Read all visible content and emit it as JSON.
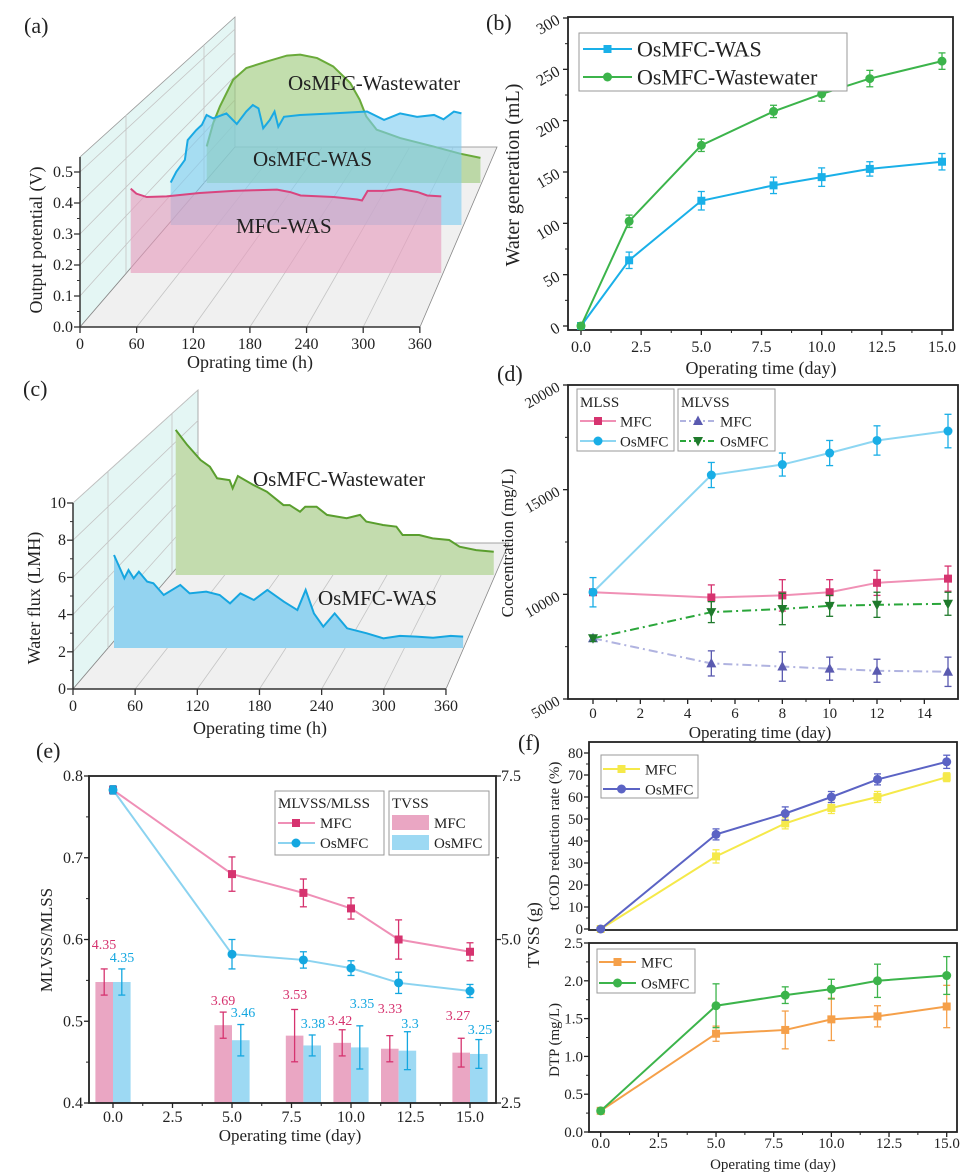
{
  "chart_data": [
    {
      "panel_label": "(a)",
      "type": "area",
      "projection": "3d-waterfall",
      "xlabel": "Oprating time (h)",
      "ylabel": "Output potential (V)",
      "xlim": [
        0,
        360
      ],
      "ylim": [
        0,
        0.5
      ],
      "grid": true,
      "xticks": [
        "0",
        "60",
        "120",
        "180",
        "240",
        "300",
        "360"
      ],
      "yticks": [
        "0.0",
        "0.1",
        "0.2",
        "0.3",
        "0.4",
        "0.5"
      ],
      "series": [
        {
          "name": "MFC-WAS",
          "line_color": "#d9457f",
          "fill_color": "#e79bbd",
          "points": [
            [
              0,
              0.272
            ],
            [
              6,
              0.256
            ],
            [
              17,
              0.245
            ],
            [
              38,
              0.247
            ],
            [
              73,
              0.258
            ],
            [
              109,
              0.265
            ],
            [
              130,
              0.267
            ],
            [
              155,
              0.269
            ],
            [
              169,
              0.261
            ],
            [
              180,
              0.25
            ],
            [
              215,
              0.245
            ],
            [
              240,
              0.237
            ],
            [
              245,
              0.234
            ],
            [
              251,
              0.265
            ],
            [
              268,
              0.265
            ],
            [
              286,
              0.271
            ],
            [
              304,
              0.261
            ],
            [
              314,
              0.25
            ],
            [
              329,
              0.247
            ]
          ]
        },
        {
          "name": "OsMFC-WAS",
          "line_color": "#1aa9e3",
          "fill_color": "#7fcdf0",
          "points": [
            [
              0,
              0.137
            ],
            [
              6,
              0.172
            ],
            [
              15,
              0.21
            ],
            [
              18,
              0.274
            ],
            [
              27,
              0.306
            ],
            [
              33,
              0.323
            ],
            [
              38,
              0.355
            ],
            [
              45,
              0.344
            ],
            [
              59,
              0.36
            ],
            [
              70,
              0.326
            ],
            [
              80,
              0.366
            ],
            [
              87,
              0.387
            ],
            [
              93,
              0.376
            ],
            [
              98,
              0.312
            ],
            [
              105,
              0.339
            ],
            [
              110,
              0.366
            ],
            [
              114,
              0.317
            ],
            [
              120,
              0.349
            ],
            [
              137,
              0.355
            ],
            [
              172,
              0.36
            ],
            [
              208,
              0.366
            ],
            [
              226,
              0.339
            ],
            [
              243,
              0.36
            ],
            [
              261,
              0.349
            ],
            [
              279,
              0.355
            ],
            [
              289,
              0.341
            ],
            [
              300,
              0.366
            ],
            [
              308,
              0.36
            ]
          ]
        },
        {
          "name": "OsMFC-Wastewater",
          "line_color": "#6aaa3a",
          "fill_color": "#9cc97a",
          "points": [
            [
              0,
              0.118
            ],
            [
              7,
              0.194
            ],
            [
              14,
              0.247
            ],
            [
              28,
              0.333
            ],
            [
              42,
              0.371
            ],
            [
              64,
              0.392
            ],
            [
              85,
              0.411
            ],
            [
              99,
              0.414
            ],
            [
              117,
              0.403
            ],
            [
              134,
              0.376
            ],
            [
              152,
              0.323
            ],
            [
              162,
              0.269
            ],
            [
              169,
              0.215
            ],
            [
              180,
              0.172
            ],
            [
              205,
              0.145
            ],
            [
              240,
              0.118
            ],
            [
              268,
              0.095
            ],
            [
              290,
              0.081
            ]
          ]
        }
      ]
    },
    {
      "panel_label": "(b)",
      "type": "line",
      "xlabel": "Operating time (day)",
      "ylabel": "Water generation (mL)",
      "xlim": [
        0,
        15
      ],
      "ylim": [
        0,
        300
      ],
      "legend": "top-left",
      "xticks": [
        "0.0",
        "2.5",
        "5.0",
        "7.5",
        "10.0",
        "12.5",
        "15.0"
      ],
      "yticks": [
        "0",
        "50",
        "100",
        "150",
        "200",
        "250",
        "300"
      ],
      "x": [
        0,
        2,
        5,
        8,
        10,
        12,
        15
      ],
      "series": [
        {
          "name": "OsMFC-WAS",
          "marker": "square",
          "color": "#1ab0e8",
          "values": [
            0,
            64,
            122,
            137,
            145,
            153,
            160
          ],
          "errors": [
            3,
            8,
            9,
            8,
            9,
            7,
            8
          ]
        },
        {
          "name": "OsMFC-Wastewater",
          "marker": "circle",
          "color": "#3cb44b",
          "values": [
            0,
            102,
            176,
            209,
            226,
            241,
            258
          ],
          "errors": [
            3,
            6,
            6,
            6,
            7,
            8,
            8
          ]
        }
      ]
    },
    {
      "panel_label": "(c)",
      "type": "area",
      "projection": "3d-waterfall",
      "xlabel": "Operating time (h)",
      "ylabel": "Water flux (LMH)",
      "xlim": [
        0,
        360
      ],
      "ylim": [
        0,
        10
      ],
      "grid": true,
      "xticks": [
        "0",
        "60",
        "120",
        "180",
        "240",
        "300",
        "360"
      ],
      "yticks": [
        "0",
        "2",
        "4",
        "6",
        "8",
        "10"
      ],
      "series": [
        {
          "name": "OsMFC-WAS",
          "line_color": "#16a6e0",
          "fill_color": "#93d3f0",
          "points": [
            [
              0,
              5.0
            ],
            [
              10,
              3.75
            ],
            [
              14,
              4.19
            ],
            [
              19,
              3.75
            ],
            [
              24,
              4.1
            ],
            [
              32,
              3.57
            ],
            [
              38,
              3.48
            ],
            [
              48,
              2.85
            ],
            [
              64,
              3.39
            ],
            [
              73,
              2.94
            ],
            [
              89,
              3.03
            ],
            [
              102,
              2.85
            ],
            [
              112,
              2.4
            ],
            [
              122,
              2.94
            ],
            [
              135,
              2.58
            ],
            [
              148,
              3.12
            ],
            [
              164,
              2.49
            ],
            [
              177,
              2.04
            ],
            [
              185,
              3.12
            ],
            [
              193,
              1.86
            ],
            [
              202,
              1.15
            ],
            [
              213,
              1.86
            ],
            [
              225,
              1.06
            ],
            [
              244,
              0.79
            ],
            [
              260,
              0.52
            ],
            [
              276,
              0.65
            ],
            [
              292,
              0.61
            ],
            [
              308,
              0.55
            ],
            [
              325,
              0.65
            ],
            [
              337,
              0.61
            ]
          ]
        },
        {
          "name": "OsMFC-Wastewater",
          "line_color": "#5a9e2e",
          "fill_color": "#c3dcae",
          "points": [
            [
              0,
              7.8
            ],
            [
              11,
              7.0
            ],
            [
              24,
              6.18
            ],
            [
              33,
              5.82
            ],
            [
              40,
              5.2
            ],
            [
              52,
              5.1
            ],
            [
              55,
              4.66
            ],
            [
              60,
              5.32
            ],
            [
              75,
              4.84
            ],
            [
              88,
              4.48
            ],
            [
              104,
              3.76
            ],
            [
              110,
              3.76
            ],
            [
              120,
              3.4
            ],
            [
              125,
              3.67
            ],
            [
              136,
              3.67
            ],
            [
              146,
              3.23
            ],
            [
              165,
              3.05
            ],
            [
              178,
              3.23
            ],
            [
              184,
              2.87
            ],
            [
              200,
              2.69
            ],
            [
              213,
              2.6
            ],
            [
              219,
              2.15
            ],
            [
              235,
              2.15
            ],
            [
              248,
              1.97
            ],
            [
              264,
              1.88
            ],
            [
              274,
              1.52
            ],
            [
              290,
              1.34
            ],
            [
              307,
              1.25
            ]
          ]
        }
      ]
    },
    {
      "panel_label": "(d)",
      "type": "line",
      "xlabel": "Operating time (day)",
      "ylabel": "Concentration (mg/L)",
      "xlim": [
        -0.8,
        15.8
      ],
      "ylim": [
        5000,
        20000
      ],
      "legend": "top-left",
      "xticks": [
        "0",
        "2",
        "4",
        "6",
        "8",
        "10",
        "12",
        "14"
      ],
      "yticks": [
        "5000",
        "10000",
        "15000",
        "20000"
      ],
      "x": [
        0,
        5,
        8,
        10,
        12,
        15
      ],
      "legend_groups": [
        {
          "title": "MLSS",
          "series": [
            0,
            1
          ]
        },
        {
          "title": "MLVSS",
          "series": [
            2,
            3
          ]
        }
      ],
      "series": [
        {
          "name": "MFC",
          "group": "MLSS",
          "marker": "square",
          "color": "#f090b5",
          "marker_color": "#d6336f",
          "dash": "solid",
          "values": [
            10100,
            9850,
            9950,
            10100,
            10550,
            10750
          ],
          "errors": [
            0,
            600,
            750,
            600,
            600,
            600
          ]
        },
        {
          "name": "OsMFC",
          "group": "MLSS",
          "marker": "circle",
          "color": "#8dd6f2",
          "marker_color": "#19aee6",
          "dash": "solid",
          "values": [
            10100,
            15700,
            16200,
            16750,
            17350,
            17800
          ],
          "errors": [
            700,
            600,
            550,
            600,
            700,
            800
          ]
        },
        {
          "name": "MFC",
          "group": "MLVSS",
          "marker": "triangle-up",
          "color": "#b0b3e0",
          "marker_color": "#5a5ab0",
          "dash": "dash-dot",
          "values": [
            7900,
            6700,
            6550,
            6450,
            6350,
            6300
          ],
          "errors": [
            150,
            600,
            700,
            550,
            550,
            700
          ]
        },
        {
          "name": "OsMFC",
          "group": "MLVSS",
          "marker": "triangle-down",
          "color": "#2aa63a",
          "marker_color": "#1f7a2c",
          "dash": "dash-dot",
          "values": [
            7900,
            9150,
            9300,
            9450,
            9500,
            9550
          ],
          "errors": [
            150,
            500,
            750,
            500,
            600,
            550
          ]
        }
      ]
    },
    {
      "panel_label": "(e)",
      "type": "bar+line",
      "xlabel": "Operating time (day)",
      "ylabel_left": "MLVSS/MLSS",
      "ylabel_right": "TVSS (g)",
      "xlim": [
        -1,
        16
      ],
      "ylim_left": [
        0.4,
        0.8
      ],
      "ylim_right": [
        2.5,
        7.5
      ],
      "xticks": [
        "0.0",
        "2.5",
        "5.0",
        "7.5",
        "10.0",
        "12.5",
        "15.0"
      ],
      "yticks_left": [
        "0.4",
        "0.5",
        "0.6",
        "0.7",
        "0.8"
      ],
      "yticks_right": [
        "2.5",
        "5.0",
        "7.5"
      ],
      "x": [
        0,
        5,
        8,
        10,
        12,
        15
      ],
      "line_legend_title": "MLVSS/MLSS",
      "bar_legend_title": "TVSS",
      "line_series": [
        {
          "name": "MFC",
          "marker": "square",
          "color": "#ef8fb6",
          "marker_color": "#d6336f",
          "values": [
            0.783,
            0.68,
            0.657,
            0.638,
            0.6,
            0.585
          ],
          "errors": [
            0.005,
            0.021,
            0.017,
            0.013,
            0.024,
            0.011
          ]
        },
        {
          "name": "OsMFC",
          "marker": "circle",
          "color": "#8bd3f0",
          "marker_color": "#14a7e0",
          "values": [
            0.783,
            0.582,
            0.575,
            0.565,
            0.547,
            0.537
          ],
          "errors": [
            0.005,
            0.018,
            0.01,
            0.009,
            0.013,
            0.008
          ]
        }
      ],
      "bar_series": [
        {
          "name": "MFC",
          "color": "#eaa6c3",
          "label_color": "#d6336f",
          "values": [
            4.35,
            3.69,
            3.53,
            3.42,
            3.33,
            3.27
          ],
          "labels": [
            "4.35",
            "3.69",
            "3.53",
            "3.42",
            "3.33",
            "3.27"
          ],
          "errors": [
            0.2,
            0.2,
            0.4,
            0.2,
            0.2,
            0.22
          ]
        },
        {
          "name": "OsMFC",
          "color": "#9dd9f3",
          "label_color": "#14a7e0",
          "values": [
            4.35,
            3.46,
            3.38,
            3.35,
            3.3,
            3.25
          ],
          "labels": [
            "4.35",
            "3.46",
            "3.38",
            "3.35",
            "3.3",
            "3.25"
          ],
          "errors": [
            0.2,
            0.24,
            0.16,
            0.33,
            0.29,
            0.22
          ]
        }
      ]
    },
    {
      "panel_label": "(f)",
      "type": "line",
      "xlabel": "",
      "ylabel": "tCOD reduction rate (%)",
      "xlim": [
        -0.5,
        15.5
      ],
      "ylim": [
        0,
        80
      ],
      "legend": "top-left",
      "yticks": [
        "0",
        "10",
        "20",
        "30",
        "40",
        "50",
        "60",
        "70",
        "80"
      ],
      "x": [
        0,
        5,
        8,
        10,
        12,
        15
      ],
      "series": [
        {
          "name": "MFC",
          "marker": "square",
          "color": "#f5e94a",
          "values": [
            0,
            33,
            48,
            55,
            60,
            69
          ],
          "errors": [
            0,
            3,
            2.5,
            2.5,
            2.5,
            2
          ]
        },
        {
          "name": "OsMFC",
          "marker": "circle",
          "color": "#5b63c4",
          "values": [
            0,
            43,
            52.5,
            60,
            68,
            76
          ],
          "errors": [
            0,
            2.5,
            3,
            2.5,
            2.5,
            3
          ]
        }
      ]
    },
    {
      "type": "line",
      "xlabel": "Operating time (day)",
      "ylabel": "DTP (mg/L)",
      "xlim": [
        -0.5,
        15.5
      ],
      "ylim": [
        0,
        2.5
      ],
      "legend": "top-left",
      "xticks": [
        "0.0",
        "2.5",
        "5.0",
        "7.5",
        "10.0",
        "12.5",
        "15.0"
      ],
      "yticks": [
        "0.0",
        "0.5",
        "1.0",
        "1.5",
        "2.0",
        "2.5"
      ],
      "x": [
        0,
        5,
        8,
        10,
        12,
        15
      ],
      "series": [
        {
          "name": "MFC",
          "marker": "square",
          "color": "#f5a04a",
          "values": [
            0.28,
            1.3,
            1.35,
            1.49,
            1.53,
            1.66
          ],
          "errors": [
            0,
            0.1,
            0.25,
            0.28,
            0.14,
            0.28
          ]
        },
        {
          "name": "OsMFC",
          "marker": "circle",
          "color": "#3cb44b",
          "values": [
            0.28,
            1.67,
            1.81,
            1.89,
            2.0,
            2.07
          ],
          "errors": [
            0,
            0.29,
            0.11,
            0.13,
            0.22,
            0.25
          ]
        }
      ]
    }
  ]
}
